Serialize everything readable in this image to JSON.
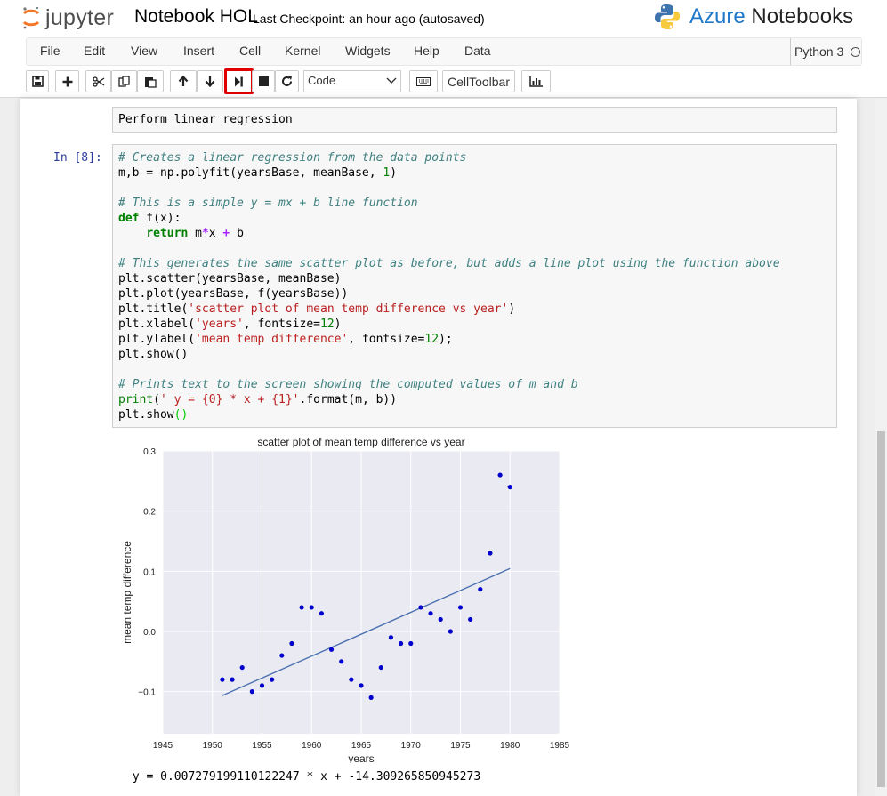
{
  "header": {
    "logo_text": "jupyter",
    "notebook_name": "Notebook HOL",
    "checkpoint": "Last Checkpoint: an hour ago (autosaved)",
    "azure_brand": "Azure",
    "azure_product": "Notebooks"
  },
  "menu": [
    "File",
    "Edit",
    "View",
    "Insert",
    "Cell",
    "Kernel",
    "Widgets",
    "Help",
    "Data"
  ],
  "kernel": "Python 3",
  "toolbar": {
    "cell_type": "Code",
    "celltoolbar_label": "CellToolbar",
    "highlight_color": "#e00000",
    "icons": [
      "save-icon",
      "plus-icon",
      "scissors-icon",
      "copy-icon",
      "paste-icon",
      "arrow-up-icon",
      "arrow-down-icon",
      "run-cell-icon",
      "stop-icon",
      "restart-icon",
      "keyboard-icon",
      "bar-chart-icon"
    ]
  },
  "markdown_cell": "Perform linear regression",
  "code_cell": {
    "prompt": "In [8]:",
    "lines": [
      "# Creates a linear regression from the data points",
      "m,b = np.polyfit(yearsBase, meanBase, 1)",
      "",
      "# This is a simple y = mx + b line function",
      "def f(x):",
      "    return m*x + b",
      "",
      "# This generates the same scatter plot as before, but adds a line plot using the function above",
      "plt.scatter(yearsBase, meanBase)",
      "plt.plot(yearsBase, f(yearsBase))",
      "plt.title('scatter plot of mean temp difference vs year')",
      "plt.xlabel('years', fontsize=12)",
      "plt.ylabel('mean temp difference', fontsize=12);",
      "plt.show()",
      "",
      "# Prints text to the screen showing the computed values of m and b",
      "print(' y = {0} * x + {1}'.format(m, b))",
      "plt.show()"
    ]
  },
  "chart_data": {
    "type": "scatter",
    "title": "scatter plot of mean temp difference vs year",
    "xlabel": "years",
    "ylabel": "mean temp difference",
    "xlim": [
      1945,
      1985
    ],
    "ylim": [
      -0.17,
      0.3
    ],
    "xticks": [
      1945,
      1950,
      1955,
      1960,
      1965,
      1970,
      1975,
      1980,
      1985
    ],
    "yticks": [
      -0.1,
      0.0,
      0.1,
      0.2,
      0.3
    ],
    "ytick_labels": [
      "−0.1",
      "0.0",
      "0.1",
      "0.2",
      "0.3"
    ],
    "grid": true,
    "point_color": "#0000cc",
    "line_color": "#4c72b0",
    "background": "#eaeaf2",
    "points": [
      {
        "x": 1951,
        "y": -0.08
      },
      {
        "x": 1952,
        "y": -0.08
      },
      {
        "x": 1953,
        "y": -0.06
      },
      {
        "x": 1954,
        "y": -0.1
      },
      {
        "x": 1955,
        "y": -0.09
      },
      {
        "x": 1956,
        "y": -0.08
      },
      {
        "x": 1957,
        "y": -0.04
      },
      {
        "x": 1958,
        "y": -0.02
      },
      {
        "x": 1959,
        "y": 0.04
      },
      {
        "x": 1960,
        "y": 0.04
      },
      {
        "x": 1961,
        "y": 0.03
      },
      {
        "x": 1962,
        "y": -0.03
      },
      {
        "x": 1963,
        "y": -0.05
      },
      {
        "x": 1964,
        "y": -0.08
      },
      {
        "x": 1965,
        "y": -0.09
      },
      {
        "x": 1966,
        "y": -0.11
      },
      {
        "x": 1967,
        "y": -0.06
      },
      {
        "x": 1968,
        "y": -0.01
      },
      {
        "x": 1969,
        "y": -0.02
      },
      {
        "x": 1970,
        "y": -0.02
      },
      {
        "x": 1971,
        "y": 0.04
      },
      {
        "x": 1972,
        "y": 0.03
      },
      {
        "x": 1973,
        "y": 0.02
      },
      {
        "x": 1974,
        "y": 0.0
      },
      {
        "x": 1975,
        "y": 0.04
      },
      {
        "x": 1976,
        "y": 0.02
      },
      {
        "x": 1977,
        "y": 0.07
      },
      {
        "x": 1978,
        "y": 0.13
      },
      {
        "x": 1979,
        "y": 0.26
      },
      {
        "x": 1980,
        "y": 0.24
      }
    ],
    "fit_line": {
      "x": [
        1951,
        1980
      ],
      "y": [
        -0.1066,
        0.1045
      ]
    }
  },
  "output_text": " y = 0.007279199110122247 * x + -14.309265850945273"
}
